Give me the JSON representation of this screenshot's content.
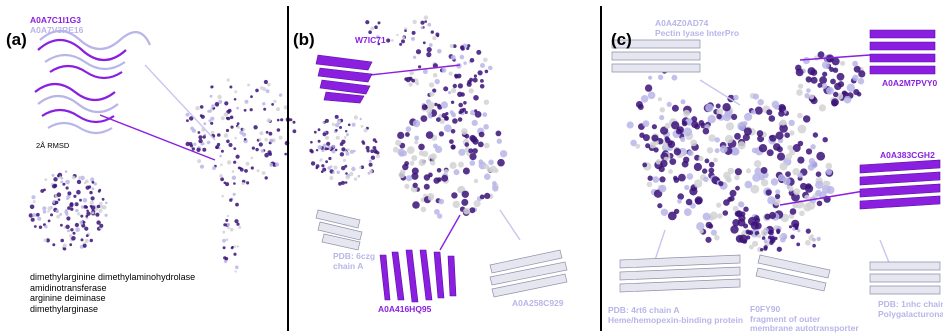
{
  "colors": {
    "dark": "#3b1278",
    "purple": "#8a1fe0",
    "lavender": "#b8b5e8",
    "grey": "#d2d2d6"
  },
  "panels": [
    {
      "letter": "(a)",
      "labels": {
        "id1": "A0A7C1I1G3",
        "id2": "A0A7V3RE16",
        "rmsd": "2Å RMSD"
      },
      "legend": [
        "dimethylarginine dimethylaminohydrolase",
        "amidinotransferase",
        "arginine deiminase",
        "dimethylarginase"
      ]
    },
    {
      "letter": "(b)",
      "labels": {
        "w7": "W7IC71",
        "pdb1": "PDB: 6czg",
        "pdb2": "chain A",
        "a416": "A0A416HQ95",
        "a258": "A0A258C929"
      }
    },
    {
      "letter": "(c)",
      "labels": {
        "top1": "A0A4Z0AD74",
        "top2": "Pectin lyase InterPro",
        "a2m": "A0A2M7PVY0",
        "a383": "A0A383CGH2",
        "pdbA1": "PDB: 4rt6 chain A",
        "pdbA2": "Heme/hemopexin-binding protein",
        "f0": "F0FY90",
        "f1": "fragment of outer",
        "f2": "membrane autotransporter",
        "pdbB1": "PDB: 1nhc chain",
        "pdbB2": "Polygalacturonas"
      }
    }
  ]
}
